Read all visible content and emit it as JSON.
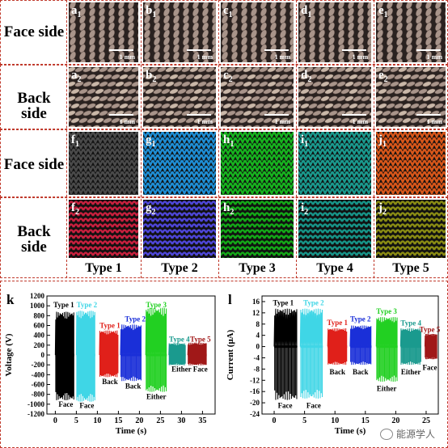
{
  "row_labels": [
    "Face side",
    "Back side",
    "Face side",
    "Back side"
  ],
  "photo_panels": [
    {
      "letter": "a",
      "sub": "1",
      "scale": "1 mm"
    },
    {
      "letter": "b",
      "sub": "1",
      "scale": "1 mm"
    },
    {
      "letter": "c",
      "sub": "1",
      "scale": "1 mm"
    },
    {
      "letter": "d",
      "sub": "1",
      "scale": "1 mm"
    },
    {
      "letter": "e",
      "sub": "1",
      "scale": "1 mm"
    },
    {
      "letter": "a",
      "sub": "2",
      "scale": "1 mm"
    },
    {
      "letter": "b",
      "sub": "2",
      "scale": "1 mm"
    },
    {
      "letter": "c",
      "sub": "2",
      "scale": "1 mm"
    },
    {
      "letter": "d",
      "sub": "2",
      "scale": "1 mm"
    },
    {
      "letter": "e",
      "sub": "2",
      "scale": "1 mm"
    }
  ],
  "model_panels": [
    {
      "letter": "f",
      "sub": "1",
      "color": "#4a4a4a"
    },
    {
      "letter": "g",
      "sub": "1",
      "color": "#1f8fd6"
    },
    {
      "letter": "h",
      "sub": "1",
      "color": "#17b51f"
    },
    {
      "letter": "i",
      "sub": "1",
      "color": "#1a9a8e"
    },
    {
      "letter": "j",
      "sub": "1",
      "color": "#d9571a"
    },
    {
      "letter": "f",
      "sub": "2",
      "color": "#c8203e"
    },
    {
      "letter": "g",
      "sub": "2",
      "color": "#4e46d8"
    },
    {
      "letter": "h",
      "sub": "2",
      "color": "#14a818"
    },
    {
      "letter": "i",
      "sub": "2",
      "color": "#179488"
    },
    {
      "letter": "j",
      "sub": "2",
      "color": "#8a8c14"
    }
  ],
  "type_labels": [
    "Type 1",
    "Type 2",
    "Type 3",
    "Type 4",
    "Type 5"
  ],
  "watermark": "能源学人",
  "chart_data": [
    {
      "type": "line",
      "panel_label": "k",
      "xlabel": "Time (s)",
      "ylabel": "Voltage (V)",
      "xlim": [
        -2,
        38
      ],
      "ylim": [
        -1200,
        1200
      ],
      "xticks": [
        0,
        5,
        10,
        15,
        20,
        25,
        30,
        35
      ],
      "yticks": [
        -1200,
        -1000,
        -800,
        -600,
        -400,
        -200,
        0,
        200,
        400,
        600,
        800,
        1000,
        1200
      ],
      "segments": [
        {
          "label": "Type 1",
          "side": "Face",
          "color": "#000000",
          "x": [
            0,
            4.5
          ],
          "max": 880,
          "min": -920
        },
        {
          "label": "Type 2",
          "side": "Face",
          "color": "#3fd6e6",
          "x": [
            5,
            9.5
          ],
          "max": 900,
          "min": -950
        },
        {
          "label": "Type 1",
          "side": "Back",
          "color": "#e0201a",
          "x": [
            10.5,
            15
          ],
          "max": 500,
          "min": -450
        },
        {
          "label": "Type 2",
          "side": "Back",
          "color": "#1a2fd8",
          "x": [
            15.5,
            20.5
          ],
          "max": 620,
          "min": -530
        },
        {
          "label": "Type 3",
          "side": "Either",
          "color": "#22d022",
          "x": [
            21.5,
            26.5
          ],
          "max": 960,
          "min": -750
        },
        {
          "label": "Type 4",
          "side": "Either",
          "color": "#1a9a8e",
          "x": [
            27,
            31
          ],
          "max": 240,
          "min": -210
        },
        {
          "label": "Type 5",
          "side": "Face",
          "color": "#a01818",
          "x": [
            31.5,
            36
          ],
          "max": 250,
          "min": -210
        }
      ],
      "annotations": [
        {
          "text": "Type 1",
          "color": "#000000",
          "x": 2,
          "y": 1020
        },
        {
          "text": "Type 2",
          "color": "#3fd6e6",
          "x": 7.5,
          "y": 1020
        },
        {
          "text": "Type 1",
          "color": "#e0201a",
          "x": 13,
          "y": 600
        },
        {
          "text": "Type 2",
          "color": "#1a2fd8",
          "x": 19,
          "y": 730
        },
        {
          "text": "Type 3",
          "color": "#22d022",
          "x": 24,
          "y": 1020
        },
        {
          "text": "Type 4",
          "color": "#1a9a8e",
          "x": 29.5,
          "y": 320
        },
        {
          "text": "Type 5",
          "color": "#a01818",
          "x": 34.5,
          "y": 320
        },
        {
          "text": "Face",
          "color": "#000000",
          "x": 2.5,
          "y": -1000
        },
        {
          "text": "Face",
          "color": "#000000",
          "x": 7.5,
          "y": -1030
        },
        {
          "text": "Back",
          "color": "#000000",
          "x": 13,
          "y": -540
        },
        {
          "text": "Back",
          "color": "#000000",
          "x": 18.5,
          "y": -630
        },
        {
          "text": "Either",
          "color": "#000000",
          "x": 24,
          "y": -850
        },
        {
          "text": "Either",
          "color": "#000000",
          "x": 30,
          "y": -290
        },
        {
          "text": "Face",
          "color": "#000000",
          "x": 34.5,
          "y": -290
        }
      ]
    },
    {
      "type": "line",
      "panel_label": "l",
      "xlabel": "Time (s)",
      "ylabel": "Current (μA)",
      "xlim": [
        -2,
        27
      ],
      "ylim": [
        -24,
        18
      ],
      "xticks": [
        0,
        5,
        10,
        15,
        20,
        25
      ],
      "yticks": [
        -24,
        -20,
        -16,
        -12,
        -8,
        -4,
        0,
        4,
        8,
        12,
        16
      ],
      "segments": [
        {
          "label": "Type 1",
          "side": "Face",
          "color": "#000000",
          "x": [
            0,
            3.8
          ],
          "max": 13.5,
          "min": -19
        },
        {
          "label": "Type 2",
          "side": "Face",
          "color": "#3fd6e6",
          "x": [
            4.3,
            8
          ],
          "max": 13.5,
          "min": -18.5
        },
        {
          "label": "Type 1",
          "side": "Back",
          "color": "#e0201a",
          "x": [
            8.8,
            12
          ],
          "max": 6.5,
          "min": -6.5
        },
        {
          "label": "Type 2",
          "side": "Back",
          "color": "#1a2fd8",
          "x": [
            12.5,
            16
          ],
          "max": 7.5,
          "min": -6.5
        },
        {
          "label": "Type 3",
          "side": "Either",
          "color": "#22d022",
          "x": [
            16.8,
            20.3
          ],
          "max": 10.5,
          "min": -12.5
        },
        {
          "label": "Type 4",
          "side": "Either",
          "color": "#1a9a8e",
          "x": [
            20.8,
            24.2
          ],
          "max": 6.5,
          "min": -6.5
        },
        {
          "label": "Type 5",
          "side": "Face",
          "color": "#a01818",
          "x": [
            24.8,
            26.8
          ],
          "max": 4.5,
          "min": -4.5
        }
      ],
      "annotations": [
        {
          "text": "Type 1",
          "color": "#000000",
          "x": 1.5,
          "y": 15.5
        },
        {
          "text": "Type 2",
          "color": "#3fd6e6",
          "x": 6.5,
          "y": 15.5
        },
        {
          "text": "Type 1",
          "color": "#e0201a",
          "x": 10.4,
          "y": 8.5
        },
        {
          "text": "Type 2",
          "color": "#1a2fd8",
          "x": 14.2,
          "y": 9.8
        },
        {
          "text": "Type 3",
          "color": "#22d022",
          "x": 18.5,
          "y": 12.5
        },
        {
          "text": "Type 4",
          "color": "#1a9a8e",
          "x": 22.5,
          "y": 8.3
        },
        {
          "text": "Type 5",
          "color": "#a01818",
          "x": 25.6,
          "y": 6
        },
        {
          "text": "Face",
          "color": "#000000",
          "x": 1.8,
          "y": -21
        },
        {
          "text": "Face",
          "color": "#000000",
          "x": 6.5,
          "y": -21
        },
        {
          "text": "Back",
          "color": "#000000",
          "x": 10.4,
          "y": -9
        },
        {
          "text": "Back",
          "color": "#000000",
          "x": 14.2,
          "y": -9
        },
        {
          "text": "Either",
          "color": "#000000",
          "x": 18.5,
          "y": -15
        },
        {
          "text": "Either",
          "color": "#000000",
          "x": 22.5,
          "y": -9
        },
        {
          "text": "Face",
          "color": "#000000",
          "x": 25.6,
          "y": -7.5
        }
      ]
    }
  ]
}
